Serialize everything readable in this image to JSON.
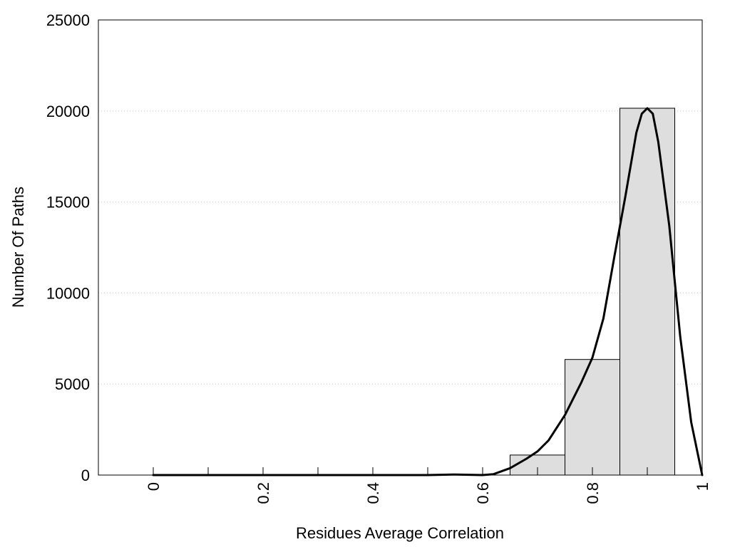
{
  "chart_data": {
    "type": "bar",
    "title": "",
    "xlabel": "Residues Average Correlation",
    "ylabel": "Number Of Paths",
    "xlim": [
      -0.1,
      1.0
    ],
    "ylim": [
      0,
      25000
    ],
    "x_ticks": [
      0,
      0.1,
      0.2,
      0.3,
      0.4,
      0.5,
      0.6,
      0.7,
      0.8,
      0.9,
      1.0
    ],
    "x_tick_labels": [
      {
        "value": 0,
        "label": "0"
      },
      {
        "value": 0.2,
        "label": "0.2"
      },
      {
        "value": 0.4,
        "label": "0.4"
      },
      {
        "value": 0.6,
        "label": "0.6"
      },
      {
        "value": 0.8,
        "label": "0.8"
      },
      {
        "value": 1.0,
        "label": "1"
      }
    ],
    "y_ticks": [
      {
        "value": 0,
        "label": "0"
      },
      {
        "value": 5000,
        "label": "5000"
      },
      {
        "value": 10000,
        "label": "10000"
      },
      {
        "value": 15000,
        "label": "15000"
      },
      {
        "value": 20000,
        "label": "20000"
      },
      {
        "value": 25000,
        "label": "25000"
      }
    ],
    "grid": "horizontal dotted",
    "legend": "none",
    "colors": {
      "bar_fill": "#dedede",
      "bar_stroke": "#000000",
      "line": "#000000",
      "grid": "#c8c8c8"
    },
    "bars": [
      {
        "x_start": 0.65,
        "x_end": 0.75,
        "value": 1100
      },
      {
        "x_start": 0.75,
        "x_end": 0.85,
        "value": 6350
      },
      {
        "x_start": 0.85,
        "x_end": 0.95,
        "value": 20150
      }
    ],
    "curve": {
      "type": "line",
      "x": [
        0,
        0.5,
        0.55,
        0.6,
        0.62,
        0.65,
        0.68,
        0.7,
        0.72,
        0.75,
        0.78,
        0.8,
        0.82,
        0.84,
        0.86,
        0.88,
        0.89,
        0.9,
        0.91,
        0.92,
        0.94,
        0.96,
        0.98,
        1.0
      ],
      "y": [
        0,
        0,
        30,
        0,
        50,
        380,
        900,
        1300,
        1900,
        3300,
        5100,
        6450,
        8600,
        12000,
        15300,
        18800,
        19850,
        20150,
        19850,
        18300,
        13700,
        7600,
        2900,
        0
      ]
    }
  }
}
